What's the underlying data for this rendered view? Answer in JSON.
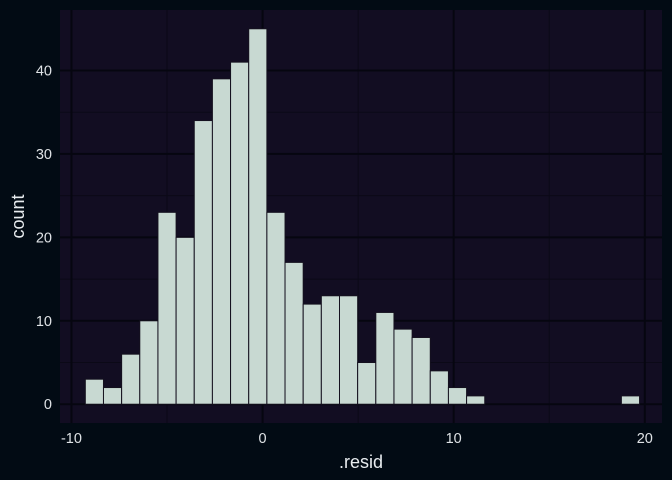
{
  "chart_data": {
    "type": "bar",
    "title": "",
    "xlabel": ".resid",
    "ylabel": "count",
    "bin_width": 0.95,
    "bins": [
      {
        "x": -8.8,
        "count": 3
      },
      {
        "x": -7.85,
        "count": 2
      },
      {
        "x": -6.9,
        "count": 6
      },
      {
        "x": -5.95,
        "count": 10
      },
      {
        "x": -5.0,
        "count": 23
      },
      {
        "x": -4.05,
        "count": 20
      },
      {
        "x": -3.1,
        "count": 34
      },
      {
        "x": -2.15,
        "count": 39
      },
      {
        "x": -1.2,
        "count": 41
      },
      {
        "x": -0.25,
        "count": 45
      },
      {
        "x": 0.7,
        "count": 23
      },
      {
        "x": 1.65,
        "count": 17
      },
      {
        "x": 2.6,
        "count": 12
      },
      {
        "x": 3.55,
        "count": 13
      },
      {
        "x": 4.5,
        "count": 13
      },
      {
        "x": 5.45,
        "count": 5
      },
      {
        "x": 6.4,
        "count": 11
      },
      {
        "x": 7.35,
        "count": 9
      },
      {
        "x": 8.3,
        "count": 8
      },
      {
        "x": 9.25,
        "count": 4
      },
      {
        "x": 10.2,
        "count": 2
      },
      {
        "x": 11.15,
        "count": 1
      },
      {
        "x": 19.25,
        "count": 1
      }
    ],
    "xlim": [
      -10.6,
      20.9
    ],
    "ylim": [
      -2.25,
      47.25
    ],
    "x_ticks": [
      {
        "value": -10,
        "label": "-10"
      },
      {
        "value": 0,
        "label": "0"
      },
      {
        "value": 10,
        "label": "10"
      },
      {
        "value": 20,
        "label": "20"
      }
    ],
    "y_ticks": [
      {
        "value": 0,
        "label": "0"
      },
      {
        "value": 10,
        "label": "10"
      },
      {
        "value": 20,
        "label": "20"
      },
      {
        "value": 30,
        "label": "30"
      },
      {
        "value": 40,
        "label": "40"
      }
    ],
    "grid": true,
    "legend": "none",
    "colors": {
      "background": "#020b14",
      "panel": "#120d22",
      "grid_major": "#060610",
      "grid_minor": "#0b0917",
      "bar_fill": "#c8d9d2",
      "bar_stroke": "#15111f",
      "text": "#dfe3e6"
    }
  }
}
